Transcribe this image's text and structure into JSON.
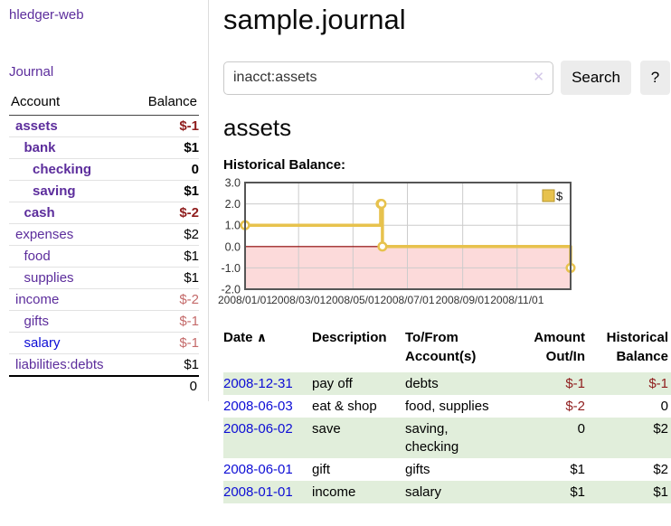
{
  "colors": {
    "link_purple": "#5c2d9c",
    "link_blue": "#0d0dd5",
    "negative_strong": "#8f1d1d",
    "negative_soft": "#c46a6a",
    "row_green": "#e1eedb",
    "chart_gold": "#e7c24d",
    "chart_negative_bg": "#fcdada",
    "chart_zero_line": "#8b0000"
  },
  "sidebar": {
    "app_title": "hledger-web",
    "journal_label": "Journal",
    "accounts": {
      "col_account": "Account",
      "col_balance": "Balance",
      "rows": [
        {
          "name": "assets",
          "indent": 0,
          "bold": true,
          "balance": "$-1",
          "negative": true,
          "muted": false
        },
        {
          "name": "bank",
          "indent": 1,
          "bold": true,
          "balance": "$1",
          "negative": false,
          "muted": false
        },
        {
          "name": "checking",
          "indent": 2,
          "bold": true,
          "balance": "0",
          "negative": false,
          "muted": false
        },
        {
          "name": "saving",
          "indent": 2,
          "bold": true,
          "balance": "$1",
          "negative": false,
          "muted": false
        },
        {
          "name": "cash",
          "indent": 1,
          "bold": true,
          "balance": "$-2",
          "negative": true,
          "muted": false
        },
        {
          "name": "expenses",
          "indent": 0,
          "bold": false,
          "balance": "$2",
          "negative": false,
          "muted": false
        },
        {
          "name": "food",
          "indent": 1,
          "bold": false,
          "balance": "$1",
          "negative": false,
          "muted": false
        },
        {
          "name": "supplies",
          "indent": 1,
          "bold": false,
          "balance": "$1",
          "negative": false,
          "muted": false
        },
        {
          "name": "income",
          "indent": 0,
          "bold": false,
          "balance": "$-2",
          "negative": true,
          "muted": true
        },
        {
          "name": "gifts",
          "indent": 1,
          "bold": false,
          "balance": "$-1",
          "negative": true,
          "muted": true
        },
        {
          "name": "salary",
          "indent": 1,
          "bold": false,
          "balance": "$-1",
          "negative": true,
          "muted": true,
          "unvisited": true
        },
        {
          "name": "liabilities:debts",
          "indent": 0,
          "bold": false,
          "balance": "$1",
          "negative": false,
          "muted": false
        }
      ],
      "total": "0"
    }
  },
  "main": {
    "title": "sample.journal",
    "search": {
      "value": "inacct:assets",
      "clear_icon": "✕",
      "button_label": "Search",
      "help_label": "?"
    },
    "account_heading": "assets",
    "chart_label": "Historical Balance:"
  },
  "chart_data": {
    "type": "line",
    "step": true,
    "title": "Historical Balance",
    "series": [
      {
        "name": "$",
        "points": [
          [
            "2008-01-01",
            1
          ],
          [
            "2008-06-01",
            2
          ],
          [
            "2008-06-02",
            2
          ],
          [
            "2008-06-03",
            0
          ],
          [
            "2008-12-31",
            -1
          ]
        ]
      }
    ],
    "x_range": [
      "2008-01-01",
      "2008-12-31"
    ],
    "x_ticks": [
      {
        "date": "2008-01-01",
        "label": "2008/01/01"
      },
      {
        "date": "2008-03-01",
        "label": "2008/03/01"
      },
      {
        "date": "2008-05-01",
        "label": "2008/05/01"
      },
      {
        "date": "2008-07-01",
        "label": "2008/07/01"
      },
      {
        "date": "2008-09-01",
        "label": "2008/09/01"
      },
      {
        "date": "2008-11-01",
        "label": "2008/11/01"
      }
    ],
    "y_ticks": [
      "3.0",
      "2.0",
      "1.0",
      "0.0",
      "-1.0",
      "-2.0"
    ],
    "ylim": [
      -2,
      3
    ],
    "grid": true,
    "legend": {
      "label": "$",
      "position": "top-right"
    },
    "negative_region": true
  },
  "register": {
    "headers": {
      "date": "Date",
      "sort_icon": "∧",
      "description": "Description",
      "accounts": "To/From\nAccount(s)",
      "amount": "Amount\nOut/In",
      "balance": "Historical\nBalance"
    },
    "rows": [
      {
        "date": "2008-12-31",
        "description": "pay off",
        "accounts": "debts",
        "amount": "$-1",
        "amount_negative": true,
        "balance": "$-1",
        "balance_negative": true,
        "shaded": true
      },
      {
        "date": "2008-06-03",
        "description": "eat & shop",
        "accounts": "food, supplies",
        "amount": "$-2",
        "amount_negative": true,
        "balance": "0",
        "balance_negative": false,
        "shaded": false
      },
      {
        "date": "2008-06-02",
        "description": "save",
        "accounts": "saving,\nchecking",
        "amount": "0",
        "amount_negative": false,
        "balance": "$2",
        "balance_negative": false,
        "shaded": true
      },
      {
        "date": "2008-06-01",
        "description": "gift",
        "accounts": "gifts",
        "amount": "$1",
        "amount_negative": false,
        "balance": "$2",
        "balance_negative": false,
        "shaded": false
      },
      {
        "date": "2008-01-01",
        "description": "income",
        "accounts": "salary",
        "amount": "$1",
        "amount_negative": false,
        "balance": "$1",
        "balance_negative": false,
        "shaded": true
      }
    ]
  }
}
